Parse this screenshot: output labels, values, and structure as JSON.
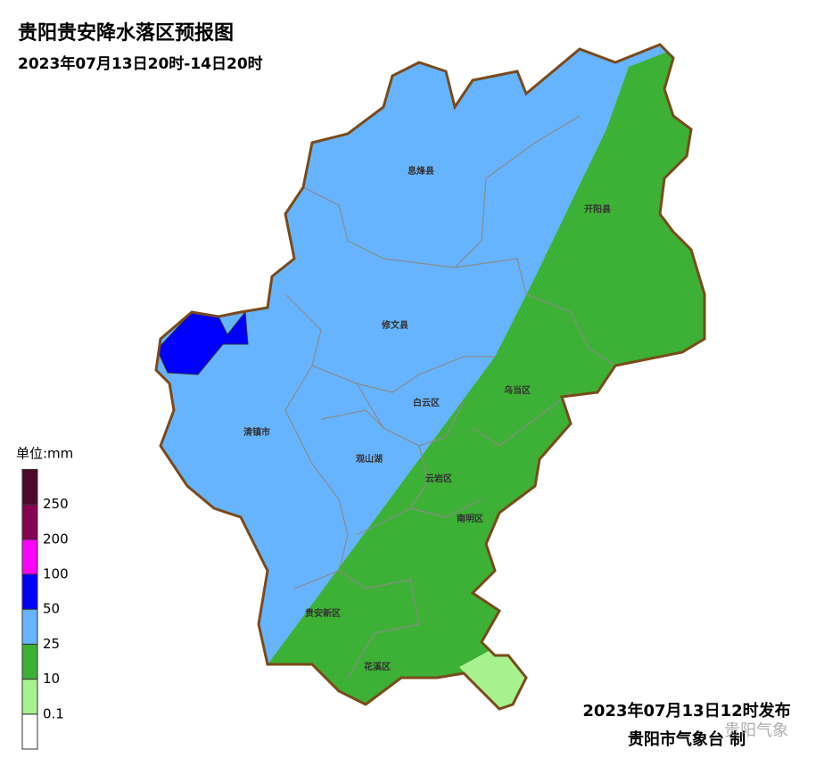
{
  "header": {
    "title": "贵阳贵安降水落区预报图",
    "subtitle": "2023年07月13日20时-14日20时"
  },
  "legend": {
    "unit": "单位:mm",
    "thresholds": [
      0.1,
      10,
      25,
      50,
      100,
      200,
      250
    ],
    "colors": [
      "#ffffff",
      "#a6f28f",
      "#3db135",
      "#66b4ff",
      "#0000fe",
      "#fe00fe",
      "#880051",
      "#4c0a2a"
    ]
  },
  "districts": [
    "息烽县",
    "开阳县",
    "修文县",
    "乌当区",
    "白云区",
    "清镇市",
    "观山湖",
    "云岩区",
    "南明区",
    "贵安新区",
    "花溪区"
  ],
  "footer": {
    "issued": "2023年07月13日12时发布",
    "issuer": "贵阳市气象台 制",
    "watermark": "贵阳气象"
  }
}
